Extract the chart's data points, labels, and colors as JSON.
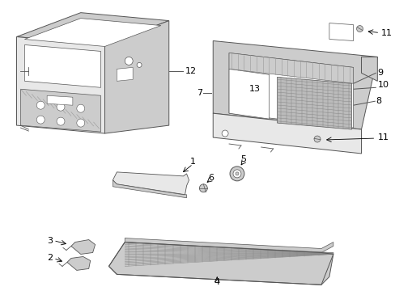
{
  "background_color": "#ffffff",
  "figsize": [
    4.89,
    3.6
  ],
  "dpi": 100,
  "line_color": "#555555",
  "fill_light": "#e8e8e8",
  "fill_med": "#cccccc",
  "fill_dark": "#aaaaaa",
  "label_fontsize": 8,
  "lw": 0.7
}
